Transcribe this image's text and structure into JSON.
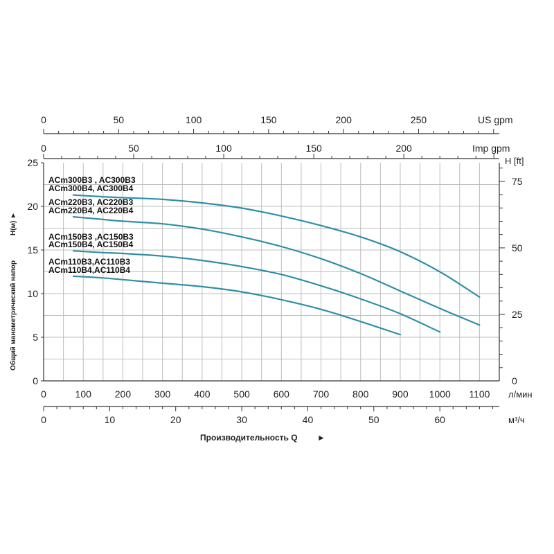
{
  "chart_data": {
    "type": "line",
    "xlabel": "Производительность Q",
    "xlabel_suffix": "►",
    "ylabel": "Общий манометрический напор",
    "ylabel_suffix": "H(м) ►",
    "x_primary": {
      "unit": "л/мин",
      "range": [
        0,
        1150
      ],
      "ticks": [
        "0",
        "100",
        "200",
        "300",
        "400",
        "500",
        "600",
        "700",
        "800",
        "900",
        "1000",
        "1100"
      ]
    },
    "x_m3h": {
      "unit": "м³/ч",
      "range": [
        0,
        69
      ],
      "ticks": [
        "0",
        "10",
        "20",
        "30",
        "40",
        "50",
        "60"
      ]
    },
    "x_us_gpm": {
      "unit": "US gpm",
      "range": [
        0,
        303.8
      ],
      "ticks": [
        "0",
        "50",
        "100",
        "150",
        "200",
        "250"
      ]
    },
    "x_imp_gpm": {
      "unit": "Imp gpm",
      "range": [
        0,
        253
      ],
      "ticks": [
        "0",
        "50",
        "100",
        "150",
        "200"
      ]
    },
    "y_primary": {
      "unit": "",
      "range": [
        0,
        25
      ],
      "ticks": [
        "0",
        "5",
        "10",
        "15",
        "20",
        "25"
      ]
    },
    "y_ft": {
      "unit": "H [ft]",
      "range": [
        0,
        82
      ],
      "ticks": [
        "0",
        "25",
        "50",
        "75"
      ]
    },
    "grid": true,
    "legend_labels": [
      "ACm300B3 , AC300B3",
      "ACm300B4, AC300B4",
      "ACm220B3, AC220B3",
      "ACm220B4, AC220B4",
      "ACm150B3 ,AC150B3",
      "ACm150B4, AC150B4",
      "ACm110B3,AC110B3",
      "ACm110B4,AC110B4"
    ],
    "series": [
      {
        "x": [
          75,
          150,
          200,
          300,
          400,
          500,
          600,
          700,
          800,
          900,
          1000,
          1100
        ],
        "y": [
          21.3,
          21.1,
          21.0,
          20.8,
          20.4,
          19.8,
          18.9,
          17.8,
          16.5,
          14.8,
          12.5,
          9.6
        ]
      },
      {
        "x": [
          75,
          150,
          200,
          300,
          400,
          500,
          600,
          700,
          800,
          900,
          1000,
          1100
        ],
        "y": [
          18.8,
          18.5,
          18.3,
          18.0,
          17.4,
          16.5,
          15.4,
          14.0,
          12.3,
          10.3,
          8.3,
          6.4
        ]
      },
      {
        "x": [
          75,
          150,
          200,
          300,
          400,
          500,
          600,
          700,
          800,
          900,
          1000
        ],
        "y": [
          14.9,
          14.7,
          14.6,
          14.3,
          13.8,
          13.1,
          12.2,
          10.9,
          9.4,
          7.7,
          5.6
        ]
      },
      {
        "x": [
          75,
          150,
          200,
          300,
          400,
          500,
          600,
          700,
          800,
          900
        ],
        "y": [
          12.0,
          11.8,
          11.6,
          11.2,
          10.8,
          10.2,
          9.3,
          8.2,
          6.8,
          5.3
        ]
      }
    ],
    "colors": {
      "curve": "#2e8fa6",
      "grid": "#bdbdbd",
      "axis": "#333333"
    }
  }
}
